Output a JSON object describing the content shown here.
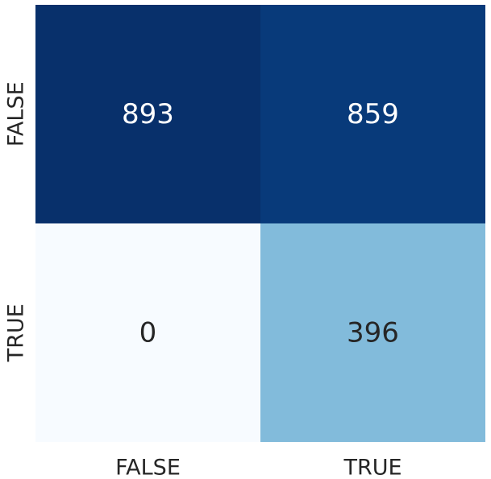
{
  "chart_data": {
    "type": "heatmap",
    "title": "",
    "xlabel": "",
    "ylabel": "",
    "x_categories": [
      "FALSE",
      "TRUE"
    ],
    "y_categories": [
      "FALSE",
      "TRUE"
    ],
    "values": [
      [
        893,
        859
      ],
      [
        0,
        396
      ]
    ],
    "colormap": "Blues",
    "colorbar": false,
    "grid": false,
    "colors": {
      "max": "#08306b",
      "min": "#f7fbff",
      "text_on_dark": "#ffffff",
      "text_on_light": "#262626"
    }
  }
}
